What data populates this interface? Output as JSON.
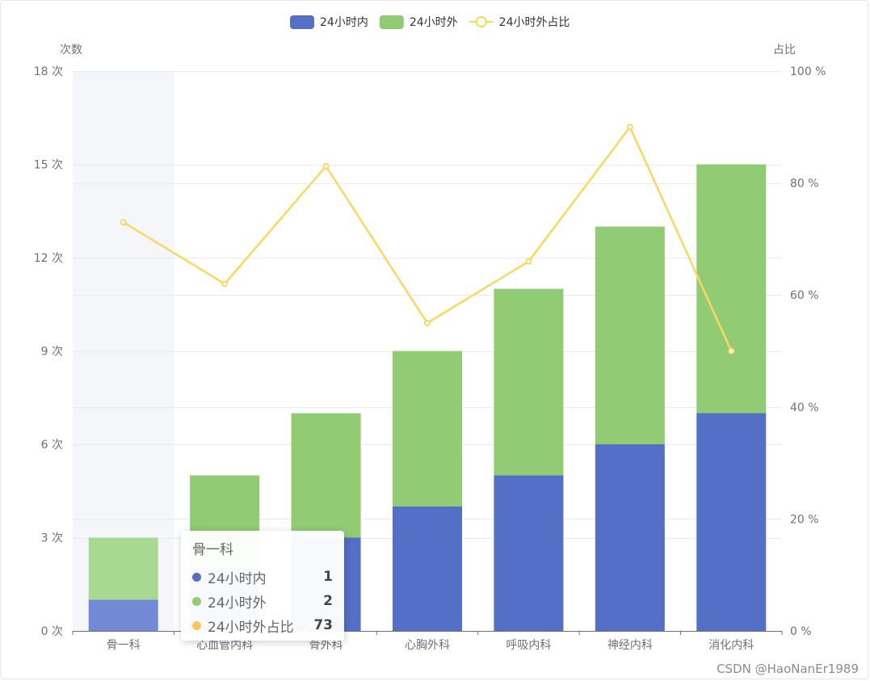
{
  "chart_data": {
    "type": "bar",
    "categories": [
      "骨一科",
      "心血管内科",
      "骨外科",
      "心胸外科",
      "呼吸内科",
      "神经内科",
      "消化内科"
    ],
    "series": [
      {
        "name": "24小时内",
        "type": "bar",
        "stack": true,
        "axis": "left",
        "color": "#5470c6",
        "values": [
          1,
          2,
          3,
          4,
          5,
          6,
          7
        ]
      },
      {
        "name": "24小时外",
        "type": "bar",
        "stack": true,
        "axis": "left",
        "color": "#91cc75",
        "values": [
          2,
          3,
          4,
          5,
          6,
          7,
          8
        ]
      },
      {
        "name": "24小时外占比",
        "type": "line",
        "axis": "right",
        "color": "#fac858",
        "values": [
          73,
          62,
          83,
          55,
          66,
          90,
          50
        ]
      }
    ],
    "yaxis_left": {
      "name": "次数",
      "min": 0,
      "max": 18,
      "interval": 3,
      "unit": " 次"
    },
    "yaxis_right": {
      "name": "占比",
      "min": 0,
      "max": 100,
      "interval": 20,
      "unit": " %"
    },
    "grid": true,
    "legend_position": "top-center",
    "highlighted_category": "骨一科"
  },
  "tooltip": {
    "title": "骨一科",
    "rows": [
      {
        "name": "24小时内",
        "value": "1",
        "color": "#5470c6"
      },
      {
        "name": "24小时外",
        "value": "2",
        "color": "#91cc75"
      },
      {
        "name": "24小时外占比",
        "value": "73",
        "color": "#fac858"
      }
    ]
  },
  "watermark": "CSDN @HaoNanEr1989"
}
